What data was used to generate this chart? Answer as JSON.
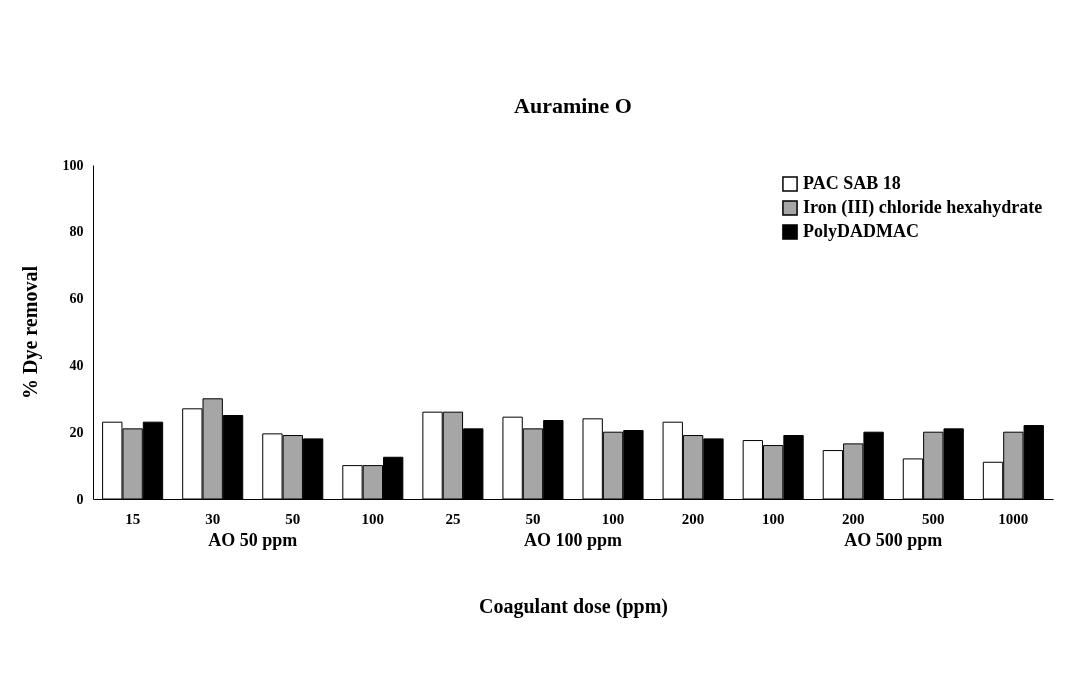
{
  "chart_data": {
    "type": "bar",
    "title": "Auramine O",
    "xlabel": "Coagulant dose (ppm)",
    "ylabel": "% Dye removal",
    "categories": [
      "15",
      "30",
      "50",
      "100",
      "25",
      "50",
      "100",
      "200",
      "100",
      "200",
      "500",
      "1000"
    ],
    "annotations": [
      "AO 50 ppm",
      "AO 100 ppm",
      "AO 500 ppm"
    ],
    "series": [
      {
        "name": "PAC SAB 18",
        "color": "#ffffff",
        "values": [
          23,
          27,
          19.5,
          10,
          26,
          24.5,
          24,
          23,
          17.5,
          14.5,
          12,
          11
        ]
      },
      {
        "name": "Iron (III) chloride hexahydrate",
        "color": "#a6a6a6",
        "values": [
          21,
          30,
          19,
          10,
          26,
          21,
          20,
          19,
          16,
          16.5,
          20,
          20
        ]
      },
      {
        "name": "PolyDADMAC",
        "color": "#000000",
        "values": [
          23,
          25,
          18,
          12.5,
          21,
          23.5,
          20.5,
          18,
          19,
          20,
          21,
          22
        ]
      }
    ],
    "ylim": [
      0,
      100
    ],
    "yticks": [
      0,
      20,
      40,
      60,
      80,
      100
    ],
    "grid": false,
    "legend": "top right"
  }
}
